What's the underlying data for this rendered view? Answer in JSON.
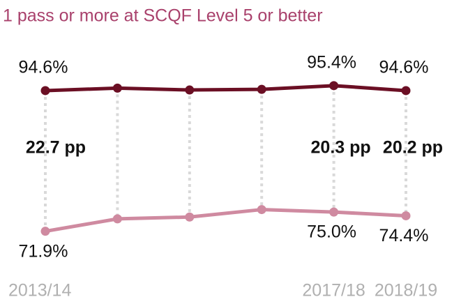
{
  "chart_data": {
    "type": "line",
    "title": "1 pass or more at SCQF Level 5 or better",
    "categories": [
      "2013/14",
      null,
      null,
      null,
      "2017/18",
      "2018/19"
    ],
    "series": [
      {
        "name": null,
        "color": "#6b0f24",
        "values": [
          94.6,
          95.0,
          94.7,
          94.8,
          95.4,
          94.6
        ],
        "value_labels": [
          "94.6%",
          null,
          null,
          null,
          "95.4%",
          "94.6%"
        ]
      },
      {
        "name": null,
        "color": "#cf8aa0",
        "values": [
          71.9,
          73.9,
          74.2,
          75.4,
          75.0,
          74.4
        ],
        "value_labels": [
          "71.9%",
          null,
          null,
          null,
          "75.0%",
          "74.4%"
        ]
      }
    ],
    "annotations": [
      {
        "text": "22.7 pp",
        "category": "2013/14"
      },
      {
        "text": "20.3 pp",
        "category": "2017/18"
      },
      {
        "text": "20.2 pp",
        "category": "2018/19"
      }
    ],
    "ylim": [
      70.4,
      96.8
    ]
  }
}
